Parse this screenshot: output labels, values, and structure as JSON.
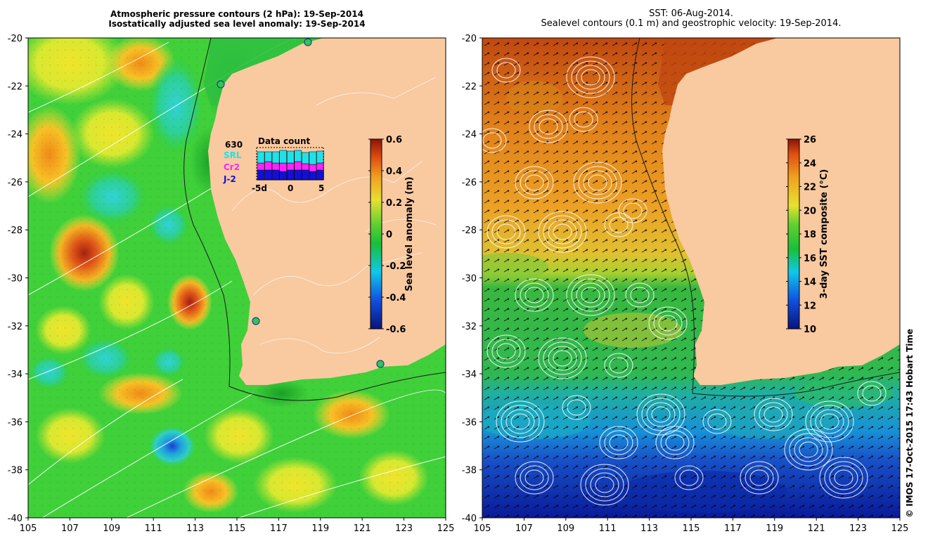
{
  "left_panel": {
    "title_line1": "Atmospheric pressure contours (2 hPa): 19-Sep-2014",
    "title_line2": "Isostatically adjusted sea level anomaly: 19-Sep-2014",
    "colorbar_label": "Sea level anomaly (m)",
    "colorbar_ticks": [
      "0.6",
      "0.4",
      "0.2",
      "0",
      "-0.2",
      "-0.4",
      "-0.6"
    ],
    "inset": {
      "total": "630",
      "title": "Data count",
      "satellites": [
        {
          "name": "SRL",
          "color": "#22e0e8"
        },
        {
          "name": "Cr2",
          "color": "#ff22ff"
        },
        {
          "name": "J-2",
          "color": "#1010d8"
        }
      ],
      "x_ticks": [
        "-5d",
        "0",
        "5"
      ]
    }
  },
  "right_panel": {
    "title_line1": "SST: 06-Aug-2014.",
    "title_line2": "Sealevel contours (0.1 m) and geostrophic velocity: 19-Sep-2014.",
    "colorbar_label": "3-day SST composite (°C)",
    "colorbar_ticks": [
      "26",
      "24",
      "22",
      "20",
      "18",
      "16",
      "14",
      "12",
      "10"
    ]
  },
  "axes": {
    "x_ticks": [
      "105",
      "107",
      "109",
      "111",
      "113",
      "115",
      "117",
      "119",
      "121",
      "123",
      "125"
    ],
    "y_ticks": [
      "-20",
      "-22",
      "-24",
      "-26",
      "-28",
      "-30",
      "-32",
      "-34",
      "-36",
      "-38",
      "-40"
    ]
  },
  "credit": "© IMOS 17-Oct-2015 17:43 Hobart Time",
  "colors": {
    "land": "#f9c9a0",
    "ocean_sla": "#3fd23a",
    "contour": "#ffffff"
  }
}
